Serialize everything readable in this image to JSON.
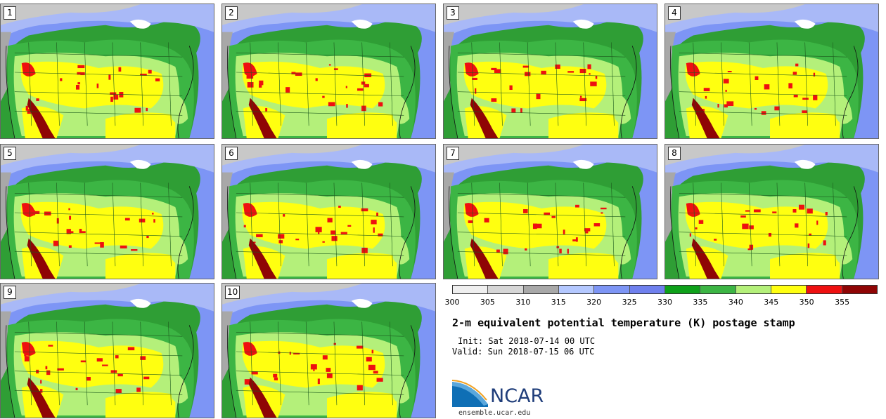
{
  "stamps": [
    {
      "label": "1"
    },
    {
      "label": "2"
    },
    {
      "label": "3"
    },
    {
      "label": "4"
    },
    {
      "label": "5"
    },
    {
      "label": "6"
    },
    {
      "label": "7"
    },
    {
      "label": "8"
    },
    {
      "label": "9"
    },
    {
      "label": "10"
    }
  ],
  "colorbar": {
    "colors": [
      "#efefef",
      "#d6d6d6",
      "#a8a8a8",
      "#b4c8ff",
      "#7d95f5",
      "#6f80ee",
      "#0ea11a",
      "#3cb544",
      "#b4f07a",
      "#ffff10",
      "#ee1010",
      "#8f0505"
    ],
    "ticks": [
      "300",
      "305",
      "310",
      "315",
      "320",
      "325",
      "330",
      "335",
      "340",
      "345",
      "350",
      "355"
    ]
  },
  "title": "2-m equivalent potential temperature (K) postage stamp",
  "init": "Init: Sat 2018-07-14 00 UTC",
  "valid": "Valid: Sun 2018-07-15 06 UTC",
  "logo": {
    "text": "NCAR",
    "url": "ensemble.ucar.edu"
  }
}
